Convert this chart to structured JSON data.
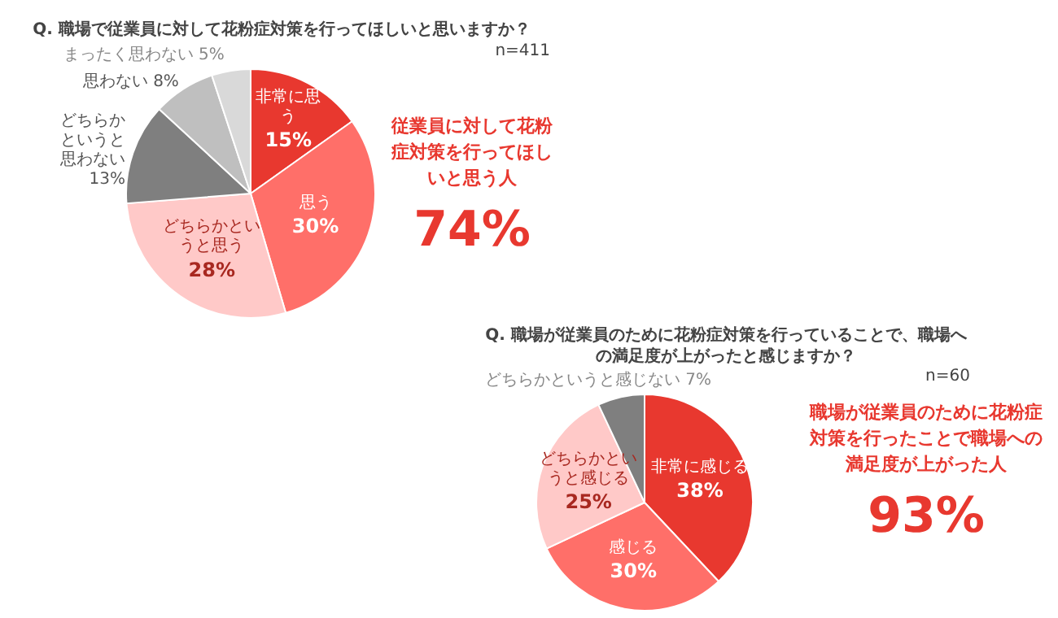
{
  "chart_data": [
    {
      "type": "pie",
      "title": "Q. 職場で従業員に対して花粉症対策を行ってほしいと思いますか？",
      "categories": [
        "非常に思う",
        "思う",
        "どちらかというと思う",
        "どちらかというと思わない",
        "思わない",
        "まったく思わない"
      ],
      "values": [
        15,
        30,
        28,
        13,
        8,
        5
      ],
      "value_labels": [
        "15%",
        "30%",
        "28%",
        "13%",
        "8%",
        "5%"
      ],
      "colors": [
        "#e8382f",
        "#ff6f69",
        "#ffc9c8",
        "#7f7f7f",
        "#bfbfbf",
        "#d9d9d9"
      ],
      "annotations": [
        "n=411",
        "従業員に対して花粉症対策を行ってほしいと思う人",
        "74%"
      ]
    },
    {
      "type": "pie",
      "title": "Q. 職場が従業員のために花粉症対策を行っていることで、職場への満足度が上がったと感じますか？",
      "categories": [
        "非常に感じる",
        "感じる",
        "どちらかというと感じる",
        "どちらかというと感じない"
      ],
      "values": [
        38,
        30,
        25,
        7
      ],
      "value_labels": [
        "38%",
        "30%",
        "25%",
        "7%"
      ],
      "colors": [
        "#e8382f",
        "#ff6f69",
        "#ffc9c8",
        "#7f7f7f"
      ],
      "annotations": [
        "n=60",
        "職場が従業員のために花粉症対策を行ったことで職場への満足度が上がった人",
        "93%"
      ]
    }
  ]
}
